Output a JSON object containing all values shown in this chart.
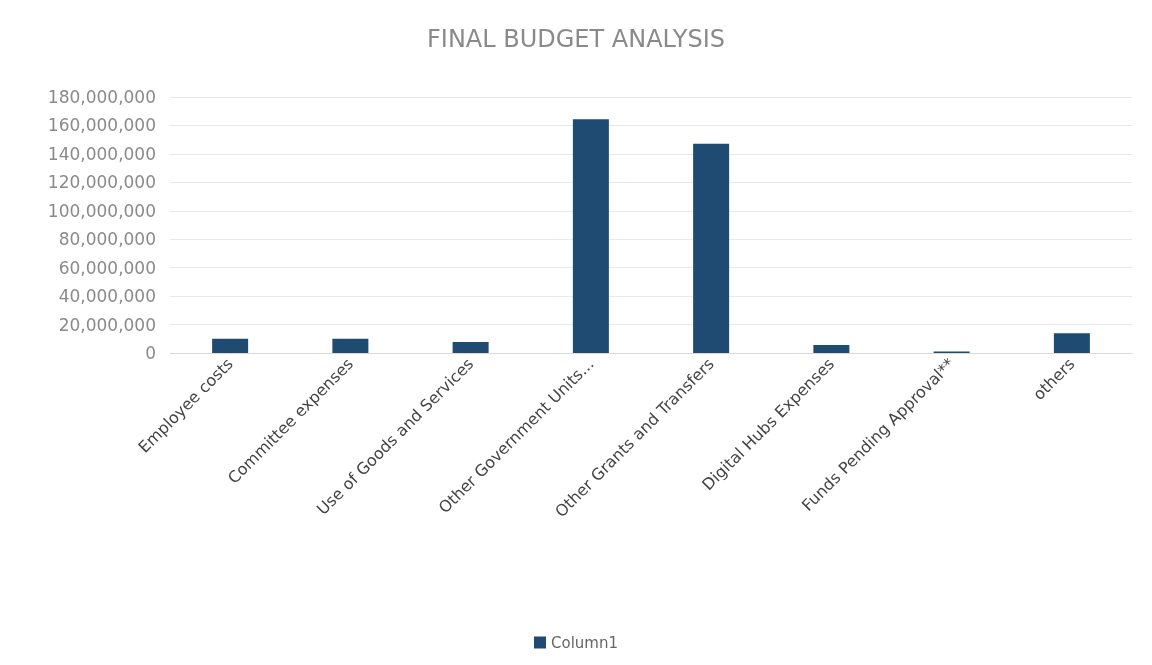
{
  "chart_data": {
    "type": "bar",
    "title": "FINAL BUDGET ANALYSIS",
    "categories": [
      "Employee costs",
      "Committee expenses",
      "Use of Goods and Services",
      "Other Government Units...",
      "Other Grants and Transfers",
      "Digital Hubs Expenses",
      "Funds Pending Approval**",
      "others"
    ],
    "series": [
      {
        "name": "Column1",
        "color": "#1f4a72",
        "values": [
          10000000,
          10000000,
          7800000,
          164400000,
          147200000,
          5700000,
          1000000,
          13800000
        ]
      }
    ],
    "ylim": [
      0,
      180000000
    ],
    "yticks": [
      0,
      {
        "value": 20000000,
        "label": "20,000,000"
      },
      {
        "value": 40000000,
        "label": "40,000,000"
      },
      {
        "value": 60000000,
        "label": "60,000,000"
      },
      {
        "value": 80000000,
        "label": "80,000,000"
      },
      {
        "value": 100000000,
        "label": "100,000,000"
      },
      {
        "value": 120000000,
        "label": "120,000,000"
      },
      {
        "value": 140000000,
        "label": "140,000,000"
      },
      {
        "value": 160000000,
        "label": "160,000,000"
      },
      {
        "value": 180000000,
        "label": "180,000,000"
      }
    ],
    "grid": "y",
    "legend": "bottom"
  }
}
